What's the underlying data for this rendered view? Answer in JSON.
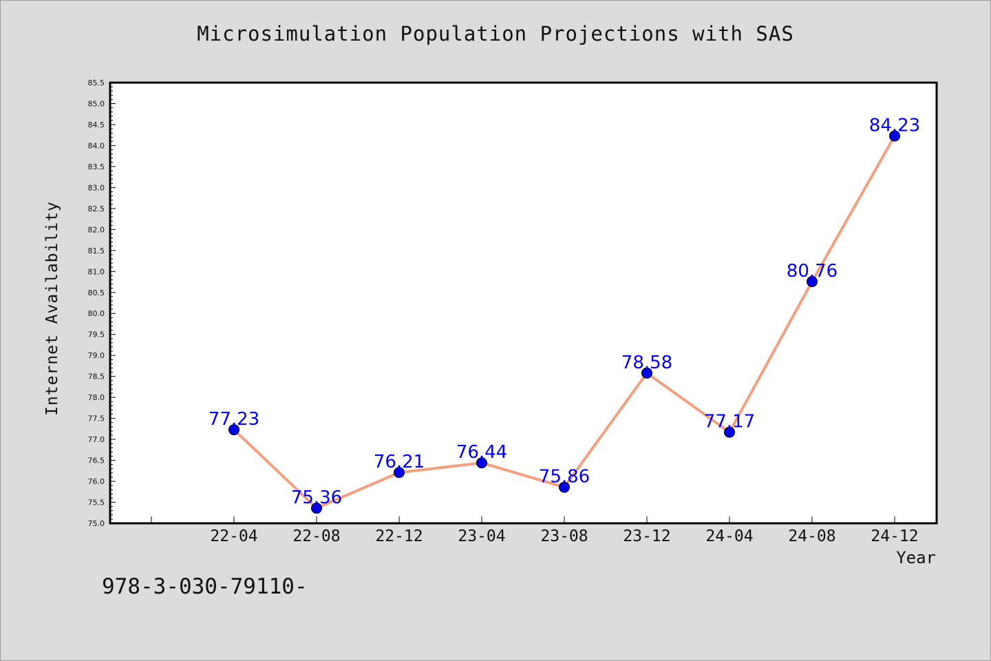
{
  "chart_data": {
    "type": "line",
    "title": "Microsimulation Population Projections with SAS",
    "xlabel": "Year",
    "ylabel": "Internet Availability",
    "categories": [
      "22-04",
      "22-08",
      "22-12",
      "23-04",
      "23-08",
      "23-12",
      "24-04",
      "24-08",
      "24-12"
    ],
    "series": [
      {
        "values": [
          77.23,
          75.36,
          76.21,
          76.44,
          75.86,
          78.58,
          77.17,
          80.76,
          84.23
        ],
        "line_color": "#f4a07e",
        "marker_color": "#0000e6",
        "label_color": "#0000ff"
      }
    ],
    "ylim": [
      75.0,
      85.5
    ],
    "ytick_step": 0.5,
    "grid": false,
    "legend": "none"
  },
  "footer_text": "978-3-030-79110-",
  "colors": {
    "background": "#dcdcdc",
    "plot_background": "#ffffff",
    "axis": "#000000"
  }
}
